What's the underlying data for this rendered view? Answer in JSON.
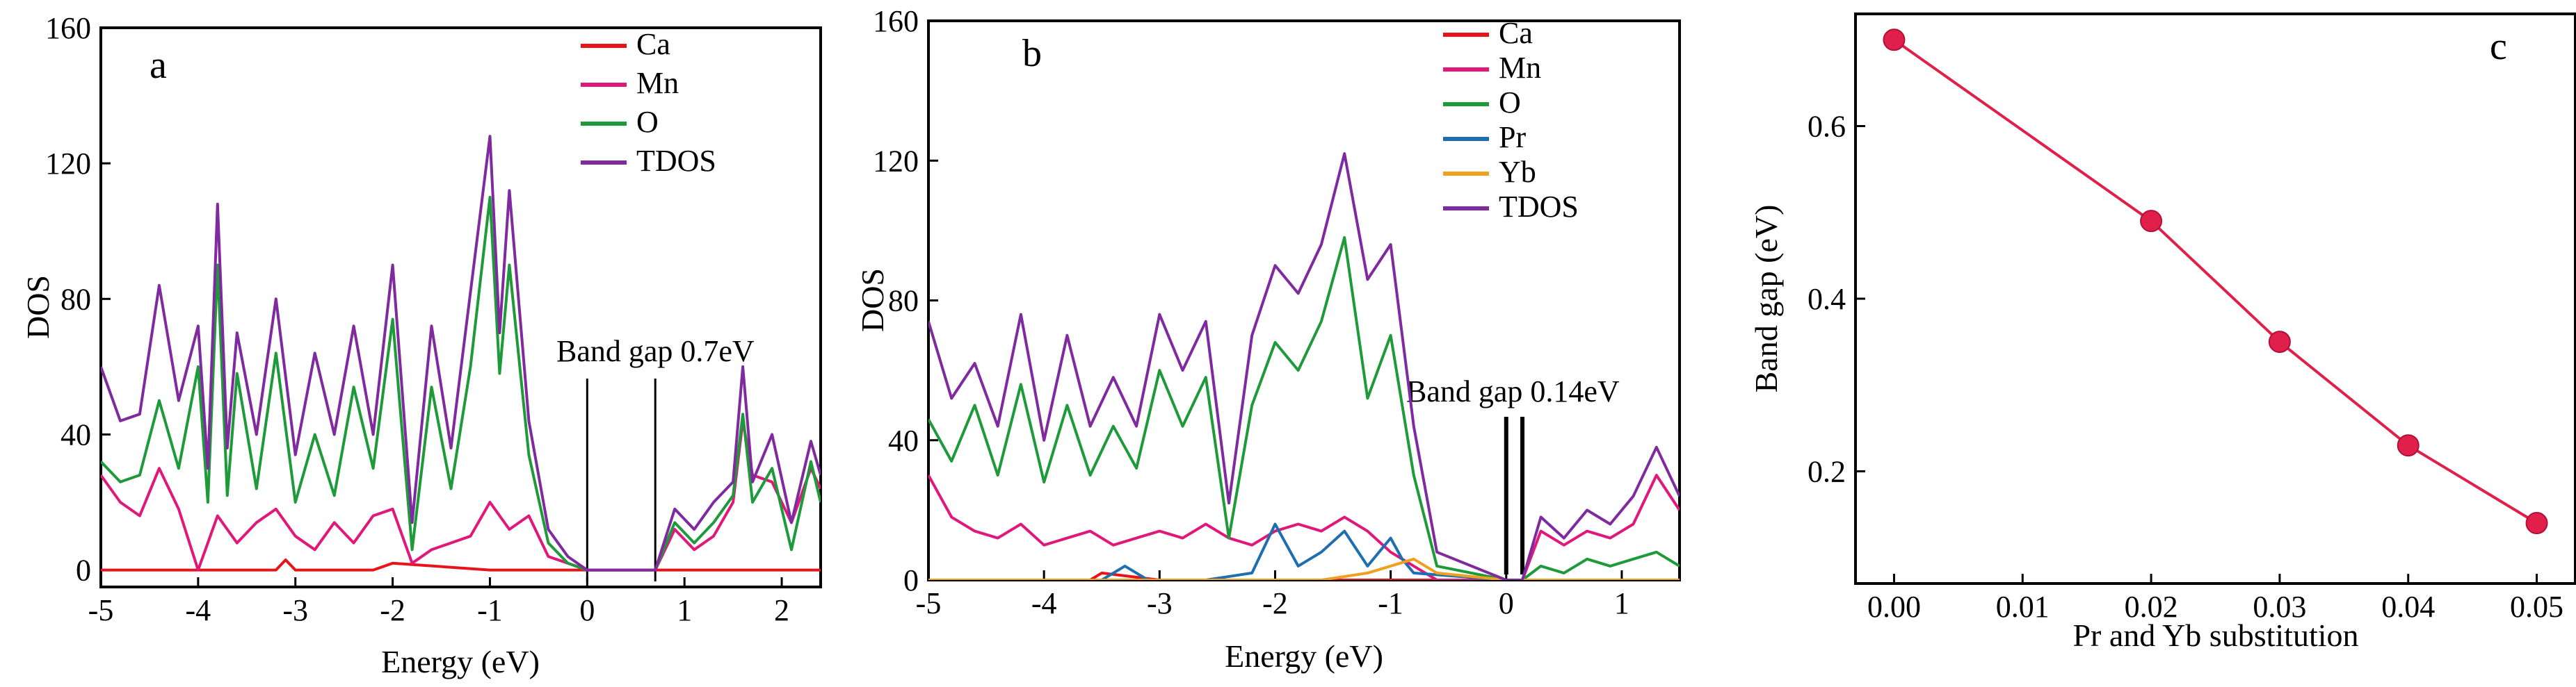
{
  "colors": {
    "Ca": "#e8141b",
    "Mn": "#e0187a",
    "O": "#1f9a3a",
    "Pr": "#1f6fb0",
    "Yb": "#f0a020",
    "TDOS": "#7f2a9e",
    "gap_line": "#e0204a"
  },
  "chart_data": [
    {
      "panel": "a",
      "type": "line",
      "xlabel": "Energy (eV)",
      "ylabel": "DOS",
      "xlim": [
        -5,
        2.4
      ],
      "ylim": [
        -5,
        160
      ],
      "xticks": [
        -5,
        -4,
        -3,
        -2,
        -1,
        0,
        1,
        2
      ],
      "yticks": [
        0,
        40,
        80,
        120,
        160
      ],
      "legend": [
        "Ca",
        "Mn",
        "O",
        "TDOS"
      ],
      "annotation": "Band gap 0.7eV",
      "gap_lines": [
        0,
        0.7
      ],
      "series": [
        {
          "name": "Ca",
          "x": [
            -5,
            -4,
            -3.2,
            -3.1,
            -3,
            -2.2,
            -2,
            -1,
            0,
            0.7,
            1,
            2,
            2.4
          ],
          "values": [
            0,
            0,
            0,
            3,
            0,
            0,
            2,
            0,
            0,
            0,
            0,
            0,
            0
          ]
        },
        {
          "name": "Mn",
          "x": [
            -5,
            -4.8,
            -4.6,
            -4.4,
            -4.2,
            -4.0,
            -3.8,
            -3.6,
            -3.4,
            -3.2,
            -3.0,
            -2.8,
            -2.6,
            -2.4,
            -2.2,
            -2.0,
            -1.8,
            -1.6,
            -1.4,
            -1.2,
            -1.0,
            -0.8,
            -0.6,
            -0.4,
            -0.2,
            0,
            0.7,
            0.9,
            1.1,
            1.3,
            1.5,
            1.6,
            1.7,
            1.9,
            2.1,
            2.3,
            2.4
          ],
          "values": [
            28,
            20,
            16,
            30,
            18,
            0,
            16,
            8,
            14,
            18,
            10,
            6,
            14,
            8,
            16,
            18,
            2,
            6,
            8,
            10,
            20,
            12,
            16,
            4,
            2,
            0,
            0,
            12,
            6,
            10,
            20,
            44,
            28,
            26,
            14,
            30,
            24
          ]
        },
        {
          "name": "O",
          "x": [
            -5,
            -4.8,
            -4.6,
            -4.4,
            -4.2,
            -4.0,
            -3.9,
            -3.8,
            -3.7,
            -3.6,
            -3.4,
            -3.2,
            -3.0,
            -2.8,
            -2.6,
            -2.4,
            -2.2,
            -2.0,
            -1.8,
            -1.6,
            -1.4,
            -1.2,
            -1.0,
            -0.9,
            -0.8,
            -0.6,
            -0.4,
            -0.2,
            0,
            0.7,
            0.9,
            1.1,
            1.3,
            1.5,
            1.6,
            1.7,
            1.9,
            2.1,
            2.3,
            2.4
          ],
          "values": [
            32,
            26,
            28,
            50,
            30,
            60,
            20,
            90,
            22,
            58,
            24,
            64,
            20,
            40,
            22,
            54,
            30,
            74,
            6,
            54,
            24,
            60,
            110,
            58,
            90,
            34,
            8,
            2,
            0,
            0,
            14,
            8,
            14,
            22,
            46,
            20,
            30,
            6,
            32,
            20
          ]
        },
        {
          "name": "TDOS",
          "x": [
            -5,
            -4.8,
            -4.6,
            -4.4,
            -4.2,
            -4.0,
            -3.9,
            -3.8,
            -3.7,
            -3.6,
            -3.4,
            -3.2,
            -3.0,
            -2.8,
            -2.6,
            -2.4,
            -2.2,
            -2.0,
            -1.8,
            -1.6,
            -1.4,
            -1.2,
            -1.0,
            -0.9,
            -0.8,
            -0.6,
            -0.4,
            -0.2,
            0,
            0.7,
            0.9,
            1.1,
            1.3,
            1.5,
            1.6,
            1.7,
            1.9,
            2.1,
            2.3,
            2.4
          ],
          "values": [
            60,
            44,
            46,
            84,
            50,
            72,
            30,
            108,
            36,
            70,
            40,
            80,
            34,
            64,
            40,
            72,
            40,
            90,
            14,
            72,
            36,
            82,
            128,
            70,
            112,
            44,
            12,
            4,
            0,
            0,
            18,
            12,
            20,
            26,
            60,
            26,
            40,
            14,
            38,
            28
          ]
        }
      ]
    },
    {
      "panel": "b",
      "type": "line",
      "xlabel": "Energy (eV)",
      "ylabel": "DOS",
      "xlim": [
        -5,
        1.5
      ],
      "ylim": [
        0,
        160
      ],
      "xticks": [
        -5,
        -4,
        -3,
        -2,
        -1,
        0,
        1
      ],
      "yticks": [
        0,
        40,
        80,
        120,
        160
      ],
      "legend": [
        "Ca",
        "Mn",
        "O",
        "Pr",
        "Yb",
        "TDOS"
      ],
      "annotation": "Band gap 0.14eV",
      "gap_lines": [
        0,
        0.14
      ],
      "series": [
        {
          "name": "Ca",
          "x": [
            -5,
            -4,
            -3.6,
            -3.5,
            -3,
            -2,
            -1,
            0,
            0.14,
            1,
            1.5
          ],
          "values": [
            0,
            0,
            0,
            2,
            0,
            0,
            0,
            0,
            0,
            0,
            0
          ]
        },
        {
          "name": "Mn",
          "x": [
            -5,
            -4.8,
            -4.6,
            -4.4,
            -4.2,
            -4.0,
            -3.8,
            -3.6,
            -3.4,
            -3.2,
            -3.0,
            -2.8,
            -2.6,
            -2.4,
            -2.2,
            -2.0,
            -1.8,
            -1.6,
            -1.4,
            -1.2,
            -1.0,
            -0.8,
            -0.6,
            0,
            0.14,
            0.3,
            0.5,
            0.7,
            0.9,
            1.1,
            1.3,
            1.5
          ],
          "values": [
            30,
            18,
            14,
            12,
            16,
            10,
            12,
            14,
            10,
            12,
            14,
            12,
            16,
            12,
            10,
            14,
            16,
            14,
            18,
            14,
            8,
            4,
            0,
            0,
            0,
            14,
            10,
            14,
            12,
            16,
            30,
            20
          ]
        },
        {
          "name": "O",
          "x": [
            -5,
            -4.8,
            -4.6,
            -4.4,
            -4.2,
            -4.0,
            -3.8,
            -3.6,
            -3.4,
            -3.2,
            -3.0,
            -2.8,
            -2.6,
            -2.4,
            -2.2,
            -2.0,
            -1.8,
            -1.6,
            -1.4,
            -1.2,
            -1.0,
            -0.8,
            -0.6,
            0,
            0.14,
            0.3,
            0.5,
            0.7,
            0.9,
            1.1,
            1.3,
            1.5
          ],
          "values": [
            46,
            34,
            50,
            30,
            56,
            28,
            50,
            30,
            44,
            32,
            60,
            44,
            58,
            12,
            50,
            68,
            60,
            74,
            98,
            52,
            70,
            30,
            4,
            0,
            0,
            4,
            2,
            6,
            4,
            6,
            8,
            4
          ]
        },
        {
          "name": "Pr",
          "x": [
            -5,
            -3.5,
            -3.3,
            -3.1,
            -2.6,
            -2.2,
            -2.0,
            -1.8,
            -1.6,
            -1.4,
            -1.2,
            -1.0,
            -0.9,
            -0.8,
            0,
            0.14,
            1.5
          ],
          "values": [
            0,
            0,
            4,
            0,
            0,
            2,
            16,
            4,
            8,
            14,
            4,
            12,
            6,
            2,
            0,
            0,
            0
          ]
        },
        {
          "name": "Yb",
          "x": [
            -5,
            -1.6,
            -1.2,
            -1.0,
            -0.8,
            -0.6,
            0,
            0.14,
            1.5
          ],
          "values": [
            0,
            0,
            2,
            4,
            6,
            2,
            0,
            0,
            0
          ]
        },
        {
          "name": "TDOS",
          "x": [
            -5,
            -4.8,
            -4.6,
            -4.4,
            -4.2,
            -4.0,
            -3.8,
            -3.6,
            -3.4,
            -3.2,
            -3.0,
            -2.8,
            -2.6,
            -2.4,
            -2.2,
            -2.0,
            -1.8,
            -1.6,
            -1.4,
            -1.2,
            -1.0,
            -0.8,
            -0.6,
            0,
            0.14,
            0.3,
            0.5,
            0.7,
            0.9,
            1.1,
            1.3,
            1.5
          ],
          "values": [
            74,
            52,
            62,
            44,
            76,
            40,
            70,
            44,
            58,
            44,
            76,
            60,
            74,
            22,
            70,
            90,
            82,
            96,
            122,
            86,
            96,
            44,
            8,
            0,
            0,
            18,
            12,
            20,
            16,
            24,
            38,
            24
          ]
        }
      ]
    },
    {
      "panel": "c",
      "type": "line",
      "xlabel": "Pr and Yb substitution",
      "ylabel": "Band gap (eV)",
      "xlim": [
        -0.003,
        0.053
      ],
      "ylim": [
        0.07,
        0.73
      ],
      "xticks": [
        0.0,
        0.01,
        0.02,
        0.03,
        0.04,
        0.05
      ],
      "xticklabels": [
        "0.00",
        "0.01",
        "0.02",
        "0.03",
        "0.04",
        "0.05"
      ],
      "yticks": [
        0.2,
        0.4,
        0.6
      ],
      "yticklabels": [
        "0.2",
        "0.4",
        "0.6"
      ],
      "series": [
        {
          "name": "Band gap",
          "x": [
            0.0,
            0.02,
            0.03,
            0.04,
            0.05
          ],
          "values": [
            0.7,
            0.49,
            0.35,
            0.23,
            0.14
          ]
        }
      ]
    }
  ]
}
